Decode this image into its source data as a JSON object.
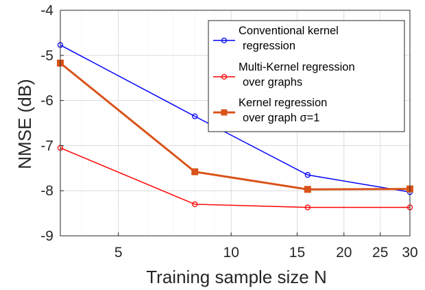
{
  "chart_data": {
    "type": "line",
    "xlabel": "Training sample size N",
    "ylabel": "NMSE (dB)",
    "x_scale": "log",
    "xlim": [
      3.5,
      30
    ],
    "ylim": [
      -9,
      -4
    ],
    "x_ticks": [
      5,
      10,
      15,
      20,
      25,
      30
    ],
    "x_tick_labels": [
      "5",
      "10",
      "15",
      "20",
      "25",
      "30"
    ],
    "y_ticks": [
      -9,
      -8,
      -7,
      -6,
      -5,
      -4
    ],
    "y_tick_labels": [
      "-9",
      "-8",
      "-7",
      "-6",
      "-5",
      "-4"
    ],
    "grid": true,
    "legend_position": "top-right",
    "series": [
      {
        "name_lines": [
          "Conventional kernel",
          "regression"
        ],
        "color": "#0000ff",
        "marker": "circle",
        "x": [
          3.5,
          8,
          16,
          30
        ],
        "y": [
          -4.77,
          -6.35,
          -7.65,
          -8.03
        ]
      },
      {
        "name_lines": [
          "Multi-Kernel regression",
          "over graphs"
        ],
        "color": "#ff0000",
        "marker": "circle",
        "x": [
          3.5,
          8,
          16,
          30
        ],
        "y": [
          -7.05,
          -8.3,
          -8.37,
          -8.37
        ]
      },
      {
        "name_lines": [
          "Kernel regression",
          "over graph σ=1"
        ],
        "color": "#d95319",
        "marker": "square",
        "x": [
          3.5,
          8,
          16,
          30
        ],
        "y": [
          -5.17,
          -7.58,
          -7.97,
          -7.96
        ]
      }
    ]
  }
}
